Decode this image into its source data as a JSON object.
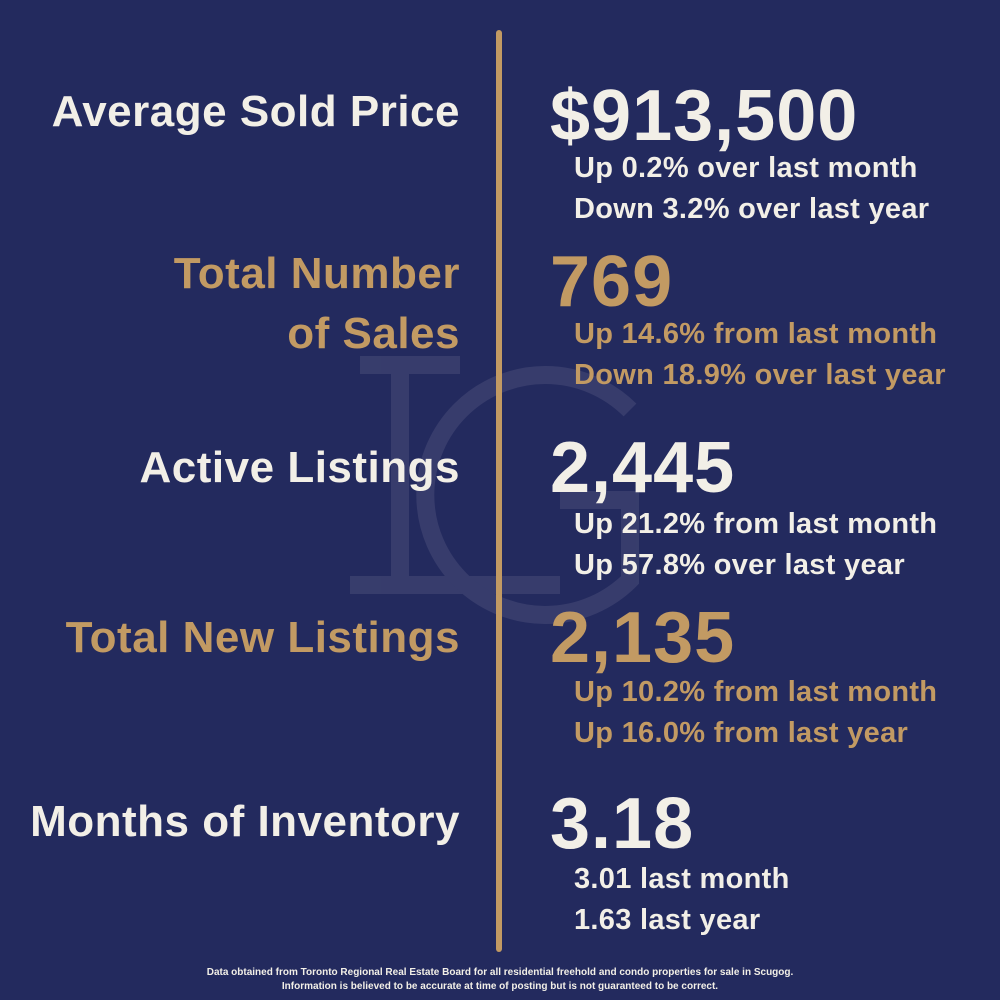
{
  "stats": [
    {
      "label_lines": [
        "Average Sold Price"
      ],
      "value": "$913,500",
      "details": [
        "Up 0.2% over last month",
        "Down 3.2% over last year"
      ],
      "color": "#f2efe7"
    },
    {
      "label_lines": [
        "Total Number",
        "of Sales"
      ],
      "value": "769",
      "details": [
        "Up 14.6% from last month",
        "Down 18.9% over last year"
      ],
      "color": "#c29a63"
    },
    {
      "label_lines": [
        "Active Listings"
      ],
      "value": "2,445",
      "details": [
        "Up 21.2% from last month",
        "Up 57.8% over last year"
      ],
      "color": "#f2efe7"
    },
    {
      "label_lines": [
        "Total New Listings"
      ],
      "value": "2,135",
      "details": [
        "Up 10.2% from last month",
        "Up 16.0% from last year"
      ],
      "color": "#c29a63"
    },
    {
      "label_lines": [
        "Months of Inventory"
      ],
      "value": "3.18",
      "details": [
        "3.01 last month",
        "1.63 last year"
      ],
      "color": "#f2efe7"
    }
  ],
  "footer": {
    "line1": "Data obtained from Toronto Regional Real Estate Board for all residential freehold and condo properties for sale in Scugog.",
    "line2": "Information is believed to be accurate at time of posting but is not guaranteed to be correct."
  },
  "colors": {
    "background": "#232a5e",
    "accent": "#c29a63",
    "text": "#f2efe7"
  },
  "watermark_icon": "lg-monogram-icon"
}
